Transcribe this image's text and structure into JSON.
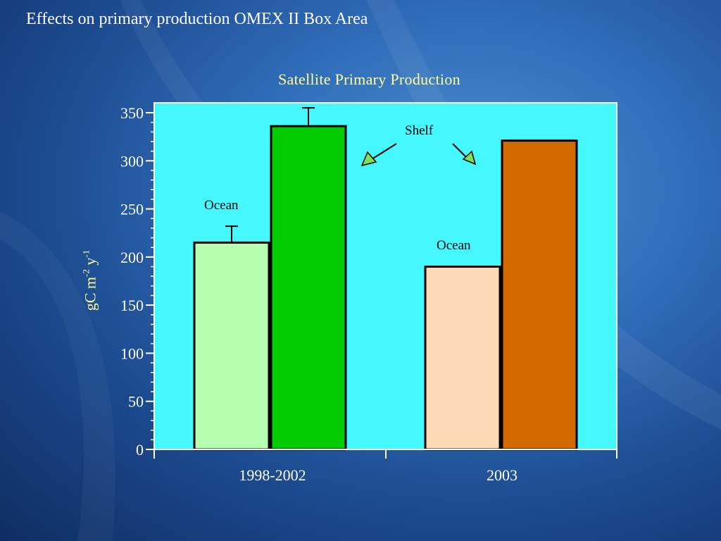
{
  "slide": {
    "title": "Effects on primary production OMEX II Box Area"
  },
  "colors": {
    "plot_background": "#44f8fe",
    "axis_text": "#ffffff",
    "title_text": "#ffff99",
    "ocean_1998_2002": "#b6ffb0",
    "shelf_1998_2002": "#00cc00",
    "ocean_2003": "#ffdab6",
    "shelf_2003": "#d26a00",
    "arrow_fill": "#7ae25a"
  },
  "chart_data": {
    "type": "bar",
    "title": "Satellite Primary Production",
    "xlabel": "",
    "ylabel": "gC m-2 y-1",
    "ylabel_parts": {
      "base1": "gC m",
      "sup1": "-2",
      "base2": " y",
      "sup2": "-1"
    },
    "ylim": [
      0,
      360
    ],
    "yticks": [
      0,
      50,
      100,
      150,
      200,
      250,
      300,
      350
    ],
    "ytick_labels": [
      "0",
      "50",
      "100",
      "150",
      "200",
      "250",
      "300",
      "350"
    ],
    "categories": [
      "1998-2002",
      "2003"
    ],
    "bars": [
      {
        "category": "1998-2002",
        "value": 215,
        "error": 17,
        "color": "#b6ffb0"
      },
      {
        "category": "1998-2002",
        "value": 336,
        "error": 19,
        "color": "#00cc00"
      },
      {
        "category": "2003",
        "value": 190,
        "error": null,
        "color": "#ffdab6"
      },
      {
        "category": "2003",
        "value": 321,
        "error": null,
        "color": "#d26a00"
      }
    ],
    "annotations": {
      "ocean_label_1": "Ocean",
      "ocean_label_2": "Ocean",
      "shelf_label": "Shelf"
    },
    "grid": false,
    "legend": "none"
  }
}
